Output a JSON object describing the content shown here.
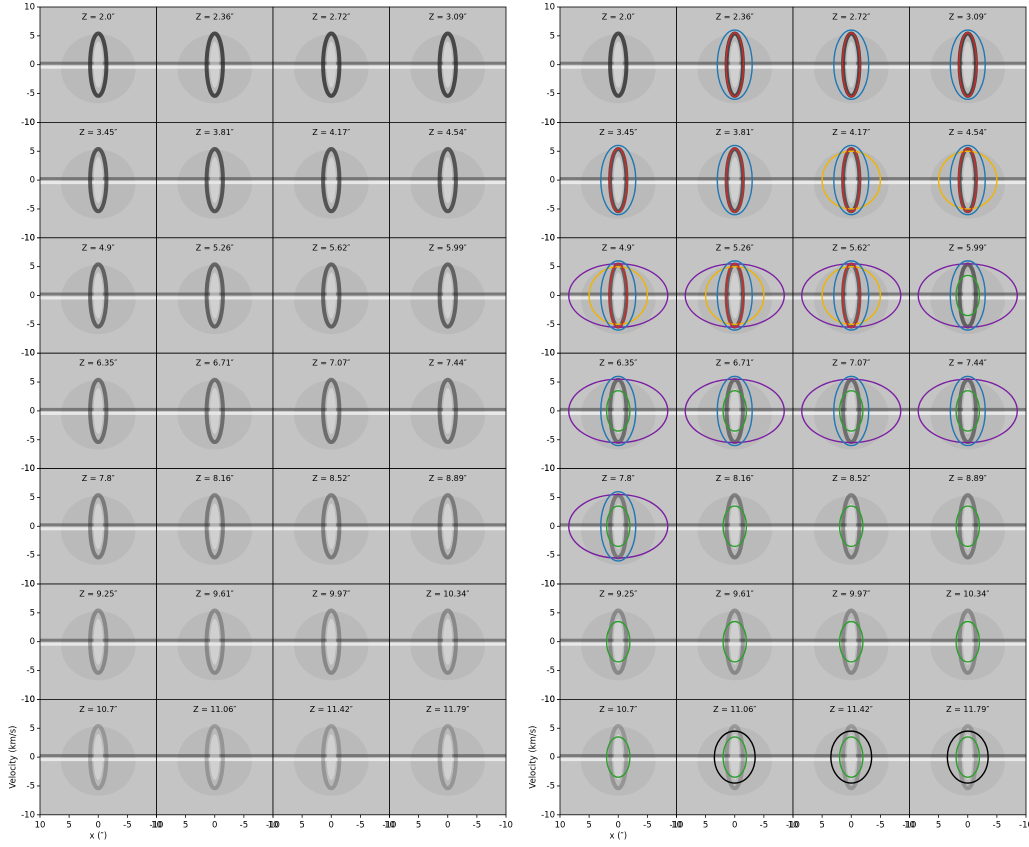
{
  "chart_data": [
    {
      "type": "pv-grid",
      "xlabel": "x (″)",
      "ylabel": "Velocity (km/s)",
      "xlim": [
        10,
        -10
      ],
      "ylim": [
        -10,
        10
      ],
      "xticks": [
        10,
        5,
        0,
        -5,
        -10
      ],
      "yticks": [
        -10,
        -5,
        0,
        5,
        10
      ],
      "panels": [
        {
          "label": "Z = 2.0″"
        },
        {
          "label": "Z = 2.36″"
        },
        {
          "label": "Z = 2.72″"
        },
        {
          "label": "Z = 3.09″"
        },
        {
          "label": "Z = 3.45″"
        },
        {
          "label": "Z = 3.81″"
        },
        {
          "label": "Z = 4.17″"
        },
        {
          "label": "Z = 4.54″"
        },
        {
          "label": "Z = 4.9″"
        },
        {
          "label": "Z = 5.26″"
        },
        {
          "label": "Z = 5.62″"
        },
        {
          "label": "Z = 5.99″"
        },
        {
          "label": "Z = 6.35″"
        },
        {
          "label": "Z = 6.71″"
        },
        {
          "label": "Z = 7.07″"
        },
        {
          "label": "Z = 7.44″"
        },
        {
          "label": "Z = 7.8″"
        },
        {
          "label": "Z = 8.16″"
        },
        {
          "label": "Z = 8.52″"
        },
        {
          "label": "Z = 8.89″"
        },
        {
          "label": "Z = 9.25″"
        },
        {
          "label": "Z = 9.61″"
        },
        {
          "label": "Z = 9.97″"
        },
        {
          "label": "Z = 10.34″"
        },
        {
          "label": "Z = 10.7″"
        },
        {
          "label": "Z = 11.06″"
        },
        {
          "label": "Z = 11.42″"
        },
        {
          "label": "Z = 11.79″"
        }
      ]
    },
    {
      "type": "pv-grid",
      "xlabel": "x (″)",
      "ylabel": "Velocity (km/s)",
      "xlim": [
        10,
        -10
      ],
      "ylim": [
        -10,
        10
      ],
      "xticks": [
        10,
        5,
        0,
        -5,
        -10
      ],
      "yticks": [
        -10,
        -5,
        0,
        5,
        10
      ],
      "panels": [
        {
          "label": "Z = 2.0″",
          "ellipses": []
        },
        {
          "label": "Z = 2.36″",
          "ellipses": [
            {
              "color": "#1f77b4",
              "rx": 3,
              "ry": 6
            },
            {
              "color": "#d62728",
              "rx": 1.5,
              "ry": 5.5
            }
          ]
        },
        {
          "label": "Z = 2.72″",
          "ellipses": [
            {
              "color": "#1f77b4",
              "rx": 3,
              "ry": 6
            },
            {
              "color": "#d62728",
              "rx": 1.5,
              "ry": 5.5
            }
          ]
        },
        {
          "label": "Z = 3.09″",
          "ellipses": [
            {
              "color": "#1f77b4",
              "rx": 3,
              "ry": 6
            },
            {
              "color": "#d62728",
              "rx": 1.5,
              "ry": 5.5
            }
          ]
        },
        {
          "label": "Z = 3.45″",
          "ellipses": [
            {
              "color": "#1f77b4",
              "rx": 3,
              "ry": 6
            },
            {
              "color": "#d62728",
              "rx": 1.5,
              "ry": 5.5
            }
          ]
        },
        {
          "label": "Z = 3.81″",
          "ellipses": [
            {
              "color": "#1f77b4",
              "rx": 3,
              "ry": 6
            },
            {
              "color": "#d62728",
              "rx": 1.5,
              "ry": 5.5
            }
          ]
        },
        {
          "label": "Z = 4.17″",
          "ellipses": [
            {
              "color": "#f0b400",
              "rx": 5,
              "ry": 5
            },
            {
              "color": "#1f77b4",
              "rx": 3,
              "ry": 6
            },
            {
              "color": "#d62728",
              "rx": 1.5,
              "ry": 5.5
            }
          ]
        },
        {
          "label": "Z = 4.54″",
          "ellipses": [
            {
              "color": "#f0b400",
              "rx": 5,
              "ry": 5
            },
            {
              "color": "#1f77b4",
              "rx": 3,
              "ry": 6
            },
            {
              "color": "#d62728",
              "rx": 1.5,
              "ry": 5.5
            }
          ]
        },
        {
          "label": "Z = 4.9″",
          "ellipses": [
            {
              "color": "#7b1fa2",
              "rx": 8.5,
              "ry": 5.5
            },
            {
              "color": "#f0b400",
              "rx": 5,
              "ry": 5
            },
            {
              "color": "#1f77b4",
              "rx": 3,
              "ry": 6
            },
            {
              "color": "#d62728",
              "rx": 1.5,
              "ry": 5.5
            }
          ]
        },
        {
          "label": "Z = 5.26″",
          "ellipses": [
            {
              "color": "#7b1fa2",
              "rx": 8.5,
              "ry": 5.5
            },
            {
              "color": "#f0b400",
              "rx": 5,
              "ry": 5
            },
            {
              "color": "#1f77b4",
              "rx": 3,
              "ry": 6
            },
            {
              "color": "#d62728",
              "rx": 1.5,
              "ry": 5.5
            }
          ]
        },
        {
          "label": "Z = 5.62″",
          "ellipses": [
            {
              "color": "#7b1fa2",
              "rx": 8.5,
              "ry": 5.5
            },
            {
              "color": "#f0b400",
              "rx": 5,
              "ry": 5
            },
            {
              "color": "#1f77b4",
              "rx": 3,
              "ry": 6
            },
            {
              "color": "#d62728",
              "rx": 1.5,
              "ry": 5.5
            }
          ]
        },
        {
          "label": "Z = 5.99″",
          "ellipses": [
            {
              "color": "#7b1fa2",
              "rx": 8.5,
              "ry": 5.5
            },
            {
              "color": "#1f77b4",
              "rx": 3,
              "ry": 6
            },
            {
              "color": "#2ca02c",
              "rx": 2,
              "ry": 3.5
            }
          ]
        },
        {
          "label": "Z = 6.35″",
          "ellipses": [
            {
              "color": "#7b1fa2",
              "rx": 8.5,
              "ry": 5.5
            },
            {
              "color": "#1f77b4",
              "rx": 3,
              "ry": 6
            },
            {
              "color": "#2ca02c",
              "rx": 2,
              "ry": 3.5
            }
          ]
        },
        {
          "label": "Z = 6.71″",
          "ellipses": [
            {
              "color": "#7b1fa2",
              "rx": 8.5,
              "ry": 5.5
            },
            {
              "color": "#1f77b4",
              "rx": 3,
              "ry": 6
            },
            {
              "color": "#2ca02c",
              "rx": 2,
              "ry": 3.5
            }
          ]
        },
        {
          "label": "Z = 7.07″",
          "ellipses": [
            {
              "color": "#7b1fa2",
              "rx": 8.5,
              "ry": 5.5
            },
            {
              "color": "#1f77b4",
              "rx": 3,
              "ry": 6
            },
            {
              "color": "#2ca02c",
              "rx": 2,
              "ry": 3.5
            }
          ]
        },
        {
          "label": "Z = 7.44″",
          "ellipses": [
            {
              "color": "#7b1fa2",
              "rx": 8.5,
              "ry": 5.5
            },
            {
              "color": "#1f77b4",
              "rx": 3,
              "ry": 6
            },
            {
              "color": "#2ca02c",
              "rx": 2,
              "ry": 3.5
            }
          ]
        },
        {
          "label": "Z = 7.8″",
          "ellipses": [
            {
              "color": "#7b1fa2",
              "rx": 8.5,
              "ry": 5.5
            },
            {
              "color": "#1f77b4",
              "rx": 3,
              "ry": 6
            },
            {
              "color": "#2ca02c",
              "rx": 2,
              "ry": 3.5
            }
          ]
        },
        {
          "label": "Z = 8.16″",
          "ellipses": [
            {
              "color": "#2ca02c",
              "rx": 2,
              "ry": 3.5
            }
          ]
        },
        {
          "label": "Z = 8.52″",
          "ellipses": [
            {
              "color": "#2ca02c",
              "rx": 2,
              "ry": 3.5
            }
          ]
        },
        {
          "label": "Z = 8.89″",
          "ellipses": [
            {
              "color": "#2ca02c",
              "rx": 2,
              "ry": 3.5
            }
          ]
        },
        {
          "label": "Z = 9.25″",
          "ellipses": [
            {
              "color": "#2ca02c",
              "rx": 2,
              "ry": 3.5
            }
          ]
        },
        {
          "label": "Z = 9.61″",
          "ellipses": [
            {
              "color": "#2ca02c",
              "rx": 2,
              "ry": 3.5
            }
          ]
        },
        {
          "label": "Z = 9.97″",
          "ellipses": [
            {
              "color": "#2ca02c",
              "rx": 2,
              "ry": 3.5
            }
          ]
        },
        {
          "label": "Z = 10.34″",
          "ellipses": [
            {
              "color": "#2ca02c",
              "rx": 2,
              "ry": 3.5
            }
          ]
        },
        {
          "label": "Z = 10.7″",
          "ellipses": [
            {
              "color": "#2ca02c",
              "rx": 2,
              "ry": 3.5
            }
          ]
        },
        {
          "label": "Z = 11.06″",
          "ellipses": [
            {
              "color": "#000000",
              "rx": 3.5,
              "ry": 4.5
            },
            {
              "color": "#2ca02c",
              "rx": 2,
              "ry": 3.5
            }
          ]
        },
        {
          "label": "Z = 11.42″",
          "ellipses": [
            {
              "color": "#000000",
              "rx": 3.5,
              "ry": 4.5
            },
            {
              "color": "#2ca02c",
              "rx": 2,
              "ry": 3.5
            }
          ]
        },
        {
          "label": "Z = 11.79″",
          "ellipses": [
            {
              "color": "#000000",
              "rx": 3.5,
              "ry": 4.5
            },
            {
              "color": "#2ca02c",
              "rx": 2,
              "ry": 3.5
            }
          ]
        }
      ]
    }
  ]
}
